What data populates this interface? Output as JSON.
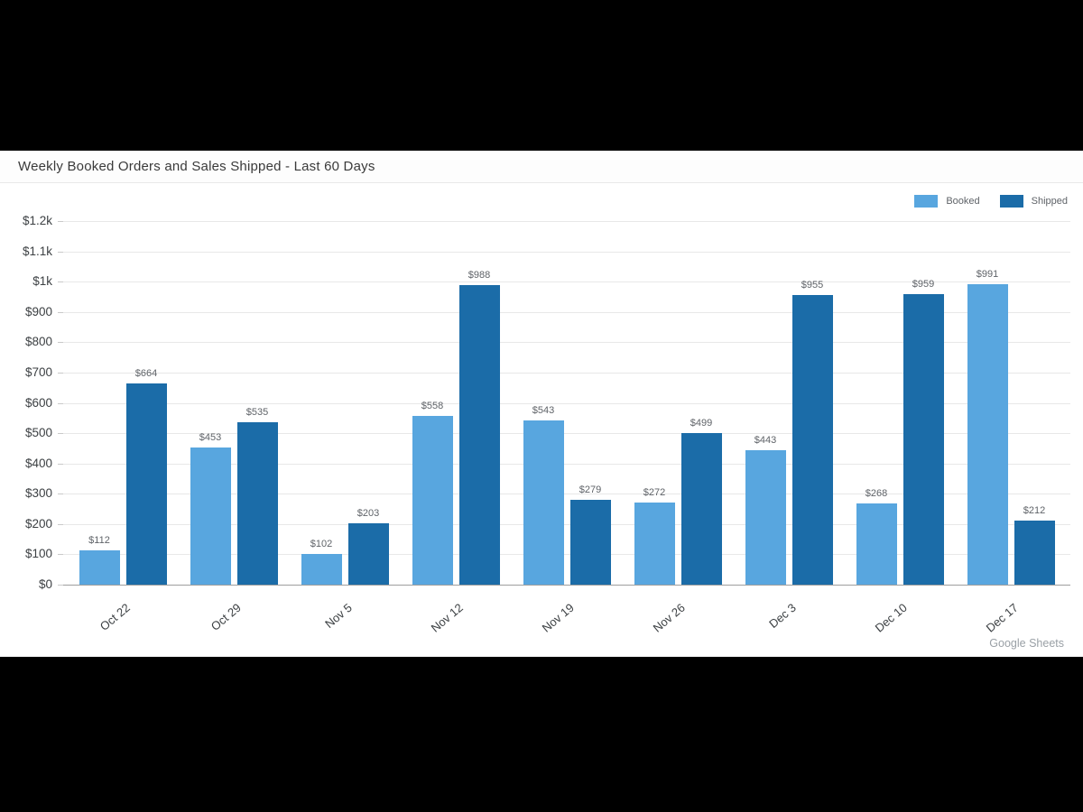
{
  "page": {
    "attribution": "Google Sheets"
  },
  "chart_data": {
    "type": "bar",
    "title": "Weekly Booked Orders and Sales Shipped - Last 60 Days",
    "categories": [
      "Oct 22",
      "Oct 29",
      "Nov 5",
      "Nov 12",
      "Nov 19",
      "Nov 26",
      "Dec 3",
      "Dec 10",
      "Dec 17"
    ],
    "series": [
      {
        "name": "Booked",
        "color": "#58a6df",
        "values": [
          112,
          453,
          102,
          558,
          543,
          272,
          443,
          268,
          991
        ]
      },
      {
        "name": "Shipped",
        "color": "#1b6ca8",
        "values": [
          664,
          535,
          203,
          988,
          279,
          499,
          955,
          959,
          212
        ]
      }
    ],
    "value_prefix": "$",
    "data_labels": {
      "Booked": [
        "$112",
        "$453",
        "$102",
        "$558",
        "$543",
        "$272",
        "$443",
        "$268",
        "$991"
      ],
      "Shipped": [
        "$664",
        "$535",
        "$203",
        "$988",
        "$279",
        "$499",
        "$955",
        "$959",
        "$212"
      ]
    },
    "y_ticks": [
      "$0",
      "$100",
      "$200",
      "$300",
      "$400",
      "$500",
      "$600",
      "$700",
      "$800",
      "$900",
      "$1k",
      "$1.1k",
      "$1.2k"
    ],
    "ylim": [
      0,
      1200
    ],
    "xlabel": "",
    "ylabel": "",
    "grid": true,
    "legend_position": "top-right",
    "legend_labels": [
      "Booked",
      "Shipped"
    ]
  }
}
